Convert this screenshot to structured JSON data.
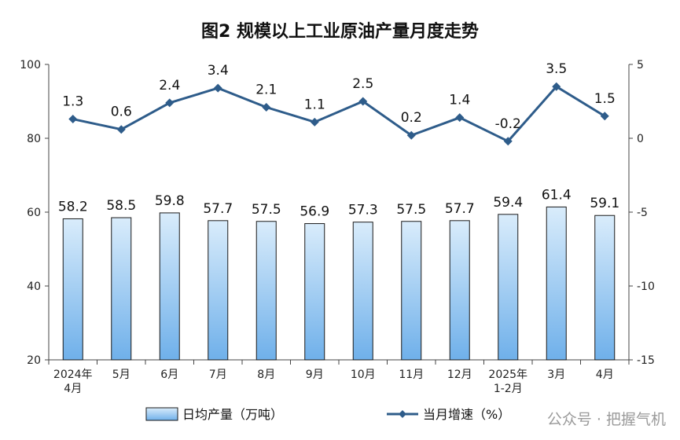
{
  "chart_data": {
    "type": "bar",
    "title": "图2  规模以上工业原油产量月度走势",
    "categories": [
      "2024年\n4月",
      "5月",
      "6月",
      "7月",
      "8月",
      "9月",
      "10月",
      "11月",
      "12月",
      "2025年\n1-2月",
      "3月",
      "4月"
    ],
    "series": [
      {
        "name": "日均产量（万吨）",
        "type": "bar",
        "axis": "left",
        "values": [
          58.2,
          58.5,
          59.8,
          57.7,
          57.5,
          56.9,
          57.3,
          57.5,
          57.7,
          59.4,
          61.4,
          59.1
        ],
        "labels": [
          "58.2",
          "58.5",
          "59.8",
          "57.7",
          "57.5",
          "56.9",
          "57.3",
          "57.5",
          "57.7",
          "59.4",
          "61.4",
          "59.1"
        ]
      },
      {
        "name": "当月增速（%）",
        "type": "line",
        "axis": "right",
        "values": [
          1.3,
          0.6,
          2.4,
          3.4,
          2.1,
          1.1,
          2.5,
          0.2,
          1.4,
          -0.2,
          3.5,
          1.5
        ],
        "labels": [
          "1.3",
          "0.6",
          "2.4",
          "3.4",
          "2.1",
          "1.1",
          "2.5",
          "0.2",
          "1.4",
          "-0.2",
          "3.5",
          "1.5"
        ]
      }
    ],
    "y_left": {
      "ylim": [
        20,
        100
      ],
      "ticks": [
        "20",
        "40",
        "60",
        "80",
        "100"
      ]
    },
    "y_right": {
      "ylim": [
        -15,
        5
      ],
      "ticks": [
        "-15",
        "-10",
        "-5",
        "0",
        "5"
      ]
    },
    "grid": false,
    "legend_position": "bottom",
    "colors": {
      "bar_fill_top": "#d9ecfb",
      "bar_fill_bottom": "#6fb0ea",
      "bar_stroke": "#1a1a1a",
      "line": "#2e5c8a"
    }
  },
  "watermark": "公众号 · 把握气机"
}
